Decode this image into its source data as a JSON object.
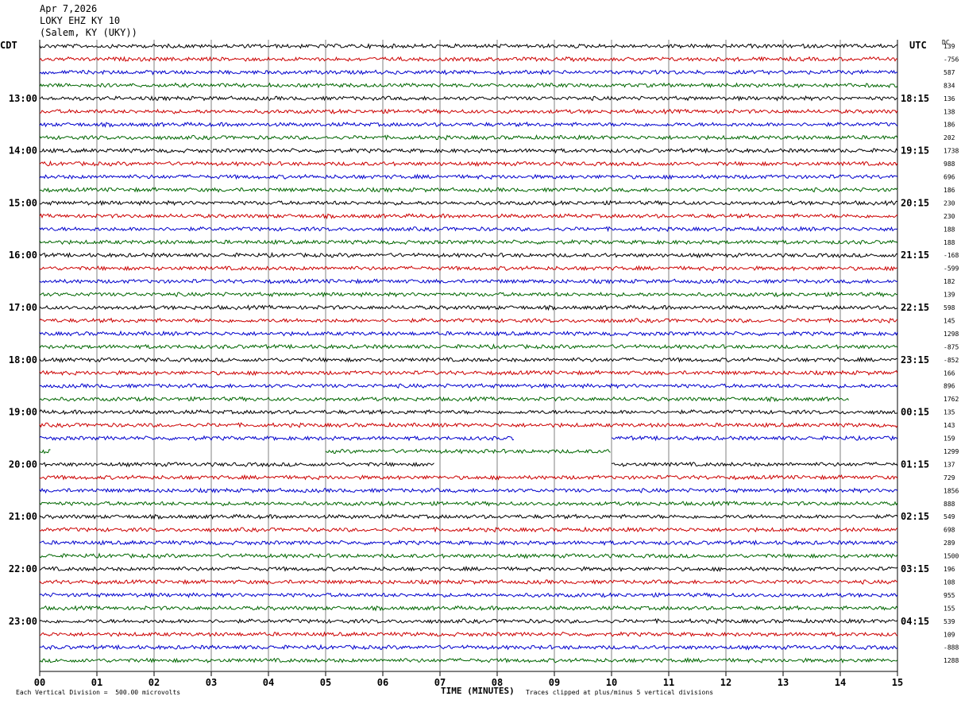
{
  "header": {
    "date": "Apr 7,2026",
    "station": "LOKY EHZ KY 10",
    "location": "(Salem, KY (UKY))"
  },
  "left_tz": "CDT",
  "right_tz": "UTC",
  "dc_label": "DC",
  "footer": {
    "left": "Each Vertical Division =  500.00 microvolts",
    "center": "TIME (MINUTES)",
    "right": "Traces clipped at plus/minus 5 vertical divisions"
  },
  "colors": {
    "black": "#000000",
    "red": "#cc0000",
    "blue": "#0000cc",
    "green": "#006600",
    "grid": "#808080"
  },
  "chart_data": {
    "type": "line",
    "title": "LOKY EHZ KY 10",
    "xlabel": "TIME (MINUTES)",
    "ylabel": "",
    "xlim": [
      0,
      15
    ],
    "x_ticks": [
      "00",
      "01",
      "02",
      "03",
      "04",
      "05",
      "06",
      "07",
      "08",
      "09",
      "10",
      "11",
      "12",
      "13",
      "14",
      "15"
    ],
    "left_hour_labels": [
      "13:00",
      "14:00",
      "15:00",
      "16:00",
      "17:00",
      "18:00",
      "19:00",
      "20:00",
      "21:00",
      "22:00",
      "23:00"
    ],
    "right_hour_labels": [
      "18:15",
      "19:15",
      "20:15",
      "21:15",
      "22:15",
      "23:15",
      "00:15",
      "01:15",
      "02:15",
      "03:15",
      "04:15"
    ],
    "trace_colors": [
      "black",
      "red",
      "blue",
      "green"
    ],
    "dc_offsets": [
      "139",
      "-756",
      "587",
      "834",
      "136",
      "138",
      "186",
      "202",
      "1738",
      "988",
      "696",
      "186",
      "230",
      "230",
      "188",
      "188",
      "-168",
      "-599",
      "182",
      "139",
      "598",
      "145",
      "1298",
      "-875",
      "-852",
      "166",
      "896",
      "1762",
      "135",
      "143",
      "159",
      "1299",
      "137",
      "729",
      "1856",
      "888",
      "549",
      "698",
      "289",
      "1500",
      "196",
      "108",
      "955",
      "155",
      "539",
      "109",
      "-888",
      "1288"
    ],
    "gaps": [
      {
        "trace": 30,
        "from": 8.3,
        "to": 10.0
      },
      {
        "trace": 31,
        "from": 0.2,
        "to": 5.0
      },
      {
        "trace": 31,
        "from": 10.0,
        "to": 15.0
      },
      {
        "trace": 32,
        "from": 6.9,
        "to": 10.0
      },
      {
        "trace": 27,
        "from": 14.15,
        "to": 15.0
      }
    ]
  }
}
